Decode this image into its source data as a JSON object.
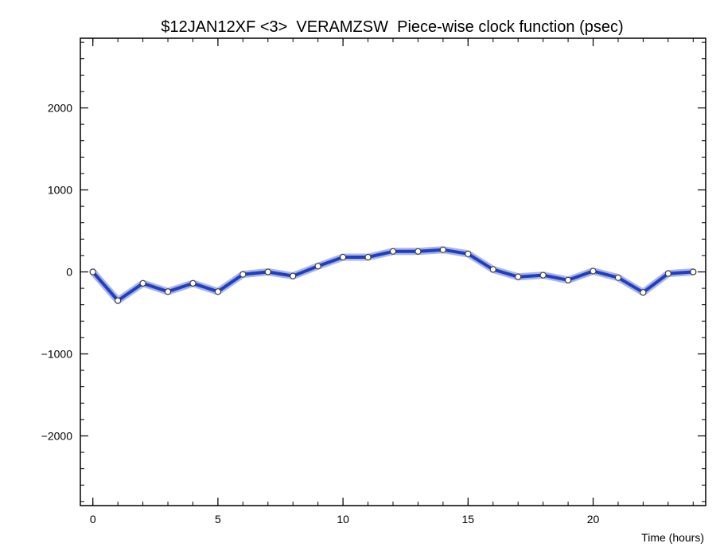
{
  "chart_data": {
    "type": "line",
    "title": "$12JAN12XF <3>  VERAMZSW  Piece-wise clock function (psec)",
    "xlabel": "Time (hours)",
    "ylabel": "",
    "xlim": [
      -0.5,
      24.5
    ],
    "ylim": [
      -2850,
      2850
    ],
    "x_ticks": [
      0,
      5,
      10,
      15,
      20
    ],
    "x_tick_labels": [
      "0",
      "5",
      "10",
      "15",
      "20"
    ],
    "y_ticks": [
      -2000,
      -1000,
      0,
      1000,
      2000
    ],
    "y_tick_labels": [
      "−2000",
      "−1000",
      "0",
      "1000",
      "2000"
    ],
    "grid": false,
    "series": [
      {
        "x": [
          0,
          1,
          2,
          3,
          4,
          5,
          6,
          7,
          8,
          9,
          10,
          11,
          12,
          13,
          14,
          15,
          16,
          17,
          18,
          19,
          20,
          21,
          22,
          23,
          24
        ],
        "values": [
          0,
          -350,
          -140,
          -240,
          -140,
          -240,
          -30,
          0,
          -50,
          70,
          180,
          180,
          250,
          250,
          270,
          220,
          30,
          -60,
          -40,
          -100,
          10,
          -70,
          -250,
          -20,
          0
        ],
        "color": "#1f3fbf",
        "band_color": "#aab4e8"
      }
    ]
  }
}
